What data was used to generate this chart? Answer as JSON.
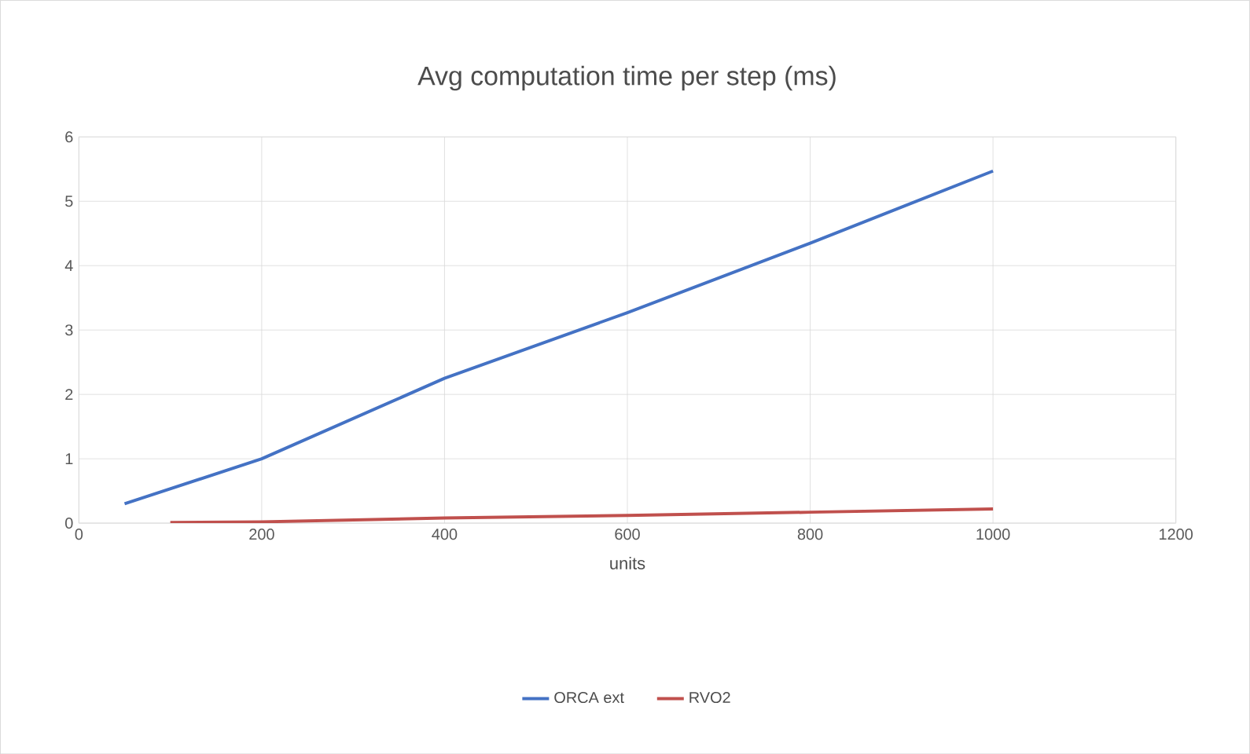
{
  "chart_data": {
    "type": "line",
    "title": "Avg computation time per step (ms)",
    "xlabel": "units",
    "series": [
      {
        "name": "ORCA ext",
        "color": "#4472c4",
        "x": [
          50,
          200,
          400,
          600,
          800,
          1000
        ],
        "values": [
          0.3,
          1.0,
          2.25,
          3.27,
          4.35,
          5.47
        ]
      },
      {
        "name": "RVO2",
        "color": "#c0504d",
        "x": [
          100,
          200,
          400,
          600,
          800,
          1000
        ],
        "values": [
          0.01,
          0.02,
          0.08,
          0.12,
          0.17,
          0.22
        ]
      }
    ],
    "xlim": [
      0,
      1200
    ],
    "xticks": [
      0,
      200,
      400,
      600,
      800,
      1000,
      1200
    ],
    "ylim": [
      0,
      6
    ],
    "yticks": [
      0,
      1,
      2,
      3,
      4,
      5,
      6
    ],
    "grid": true,
    "legend": "bottom",
    "marker": "none",
    "line_style": "solid"
  }
}
